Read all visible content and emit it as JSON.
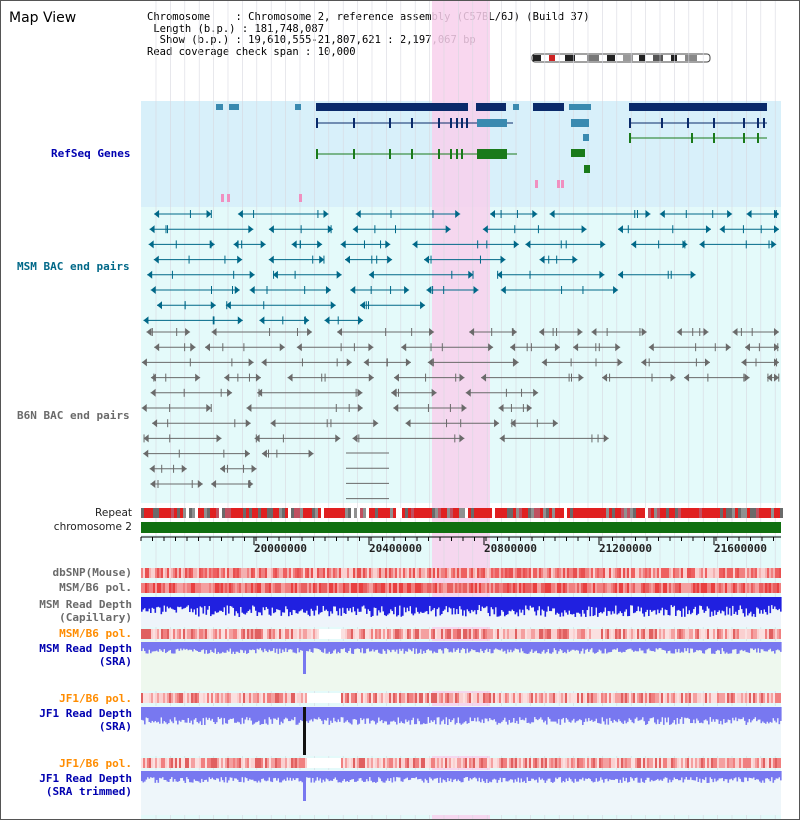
{
  "title": "Map View",
  "info": {
    "chromosome_label": "Chromosome",
    "chromosome_value": "Chromosome 2, reference assembly (C57BL/6J) (Build 37)",
    "length_label": "Length (b.p.)",
    "length_value": "181,748,087",
    "show_label": "Show (b.p.)",
    "show_value": "19,610,555-21,807,621 : 2,197,067 bp",
    "coverage_label": "Read coverage check span",
    "coverage_value": "10,000"
  },
  "tracks": {
    "refseq": "RefSeq Genes",
    "msm_bac": "MSM BAC end pairs",
    "b6n_bac": "B6N BAC end pairs",
    "repeat": "Repeat",
    "chromosome": "chromosome 2",
    "dbsnp": "dbSNP(Mouse)",
    "msm_b6_pol_1": "MSM/B6 pol.",
    "msm_read_depth_cap_1": "MSM Read Depth",
    "msm_read_depth_cap_2": "(Capillary)",
    "msm_b6_pol_2": "MSM/B6 pol.",
    "msm_read_depth_sra_1": "MSM Read Depth",
    "msm_read_depth_sra_2": "(SRA)",
    "jf1_b6_pol_1": "JF1/B6 pol.",
    "jf1_read_depth_sra_1": "JF1 Read Depth",
    "jf1_read_depth_sra_2": "(SRA)",
    "jf1_b6_pol_2": "JF1/B6 pol.",
    "jf1_read_depth_trim_1": "JF1 Read Depth",
    "jf1_read_depth_trim_2": "(SRA trimmed)"
  },
  "axis": {
    "ticks": [
      "20000000",
      "20400000",
      "20800000",
      "21200000",
      "21600000"
    ]
  },
  "colors": {
    "highlight": "#f8d0ec",
    "refseq_bg": "#d8f0fa",
    "bac_bg": "#e4fafa",
    "gene_dark": "#0a2a6a",
    "gene_mid": "#3a8ab0",
    "gene_green": "#1a7a1a",
    "bac_teal": "#006888",
    "bac_gray": "#6a6a6a",
    "chrom_green": "#107010",
    "depth_blue": "#2020e0",
    "depth_light": "#7878f0"
  }
}
